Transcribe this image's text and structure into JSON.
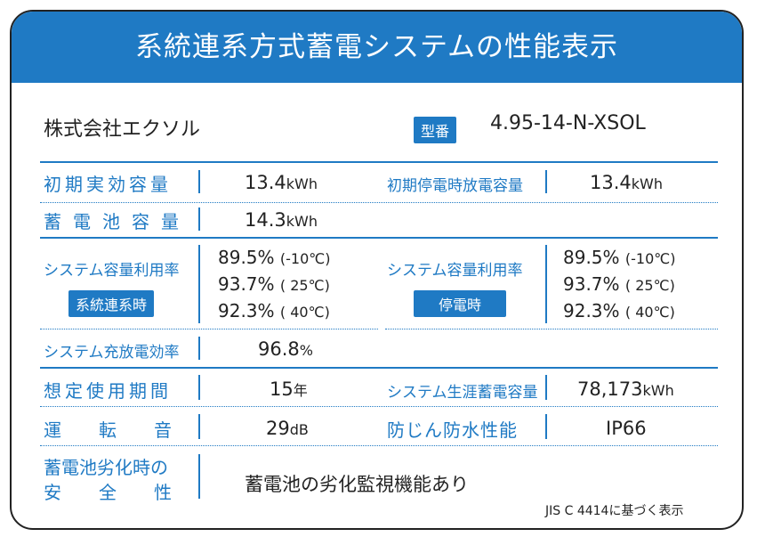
{
  "header": {
    "title": "系統連系方式蓄電システムの性能表示"
  },
  "company": "株式会社エクソル",
  "model": {
    "badge": "型番",
    "value": "4.95-14-N-XSOL"
  },
  "rows": {
    "initial_capacity": {
      "label": "初期実効容量",
      "value": "13.4",
      "unit": "kWh"
    },
    "outage_capacity": {
      "label": "初期停電時放電容量",
      "value": "13.4",
      "unit": "kWh"
    },
    "battery_capacity": {
      "label": "蓄電池容量",
      "value": "14.3",
      "unit": "kWh"
    },
    "utilization_grid": {
      "label": "システム容量利用率",
      "badge": "系統連系時",
      "values": [
        {
          "pct": "89.5%",
          "temp": "(-10℃)"
        },
        {
          "pct": "93.7%",
          "temp": "( 25℃)"
        },
        {
          "pct": "92.3%",
          "temp": "( 40℃)"
        }
      ]
    },
    "utilization_outage": {
      "label": "システム容量利用率",
      "badge": "停電時",
      "values": [
        {
          "pct": "89.5%",
          "temp": "(-10℃)"
        },
        {
          "pct": "93.7%",
          "temp": "( 25℃)"
        },
        {
          "pct": "92.3%",
          "temp": "( 40℃)"
        }
      ]
    },
    "efficiency": {
      "label": "システム充放電効率",
      "value": "96.8",
      "unit": "%"
    },
    "lifetime": {
      "label": "想定使用期間",
      "value": "15",
      "unit": "年"
    },
    "lifetime_storage": {
      "label": "システム生涯蓄電容量",
      "value": "78,173",
      "unit": "kWh"
    },
    "noise": {
      "label": "運転音",
      "value": "29",
      "unit": "dB"
    },
    "protection": {
      "label": "防じん防水性能",
      "value": "IP66"
    },
    "safety": {
      "label_line1": "蓄電池劣化時の",
      "label_line2": "安全性",
      "value": "蓄電池の劣化監視機能あり"
    }
  },
  "footnote": "JIS C 4414に基づく表示"
}
